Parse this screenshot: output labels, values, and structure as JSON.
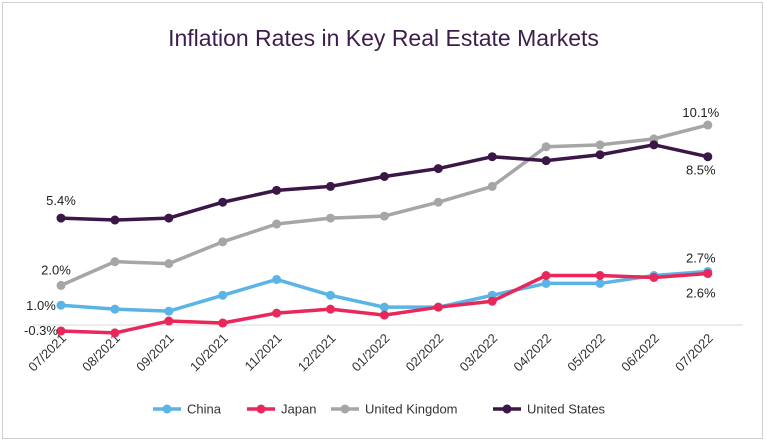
{
  "chart_data": {
    "type": "line",
    "title": "Inflation Rates in Key Real Estate Markets",
    "categories": [
      "07/2021",
      "08/2021",
      "09/2021",
      "10/2021",
      "11/2021",
      "12/2021",
      "01/2022",
      "02/2022",
      "03/2022",
      "04/2022",
      "05/2022",
      "06/2022",
      "07/2022"
    ],
    "series": [
      {
        "name": "China",
        "color": "#5ab4e5",
        "values": [
          1.0,
          0.8,
          0.7,
          1.5,
          2.3,
          1.5,
          0.9,
          0.9,
          1.5,
          2.1,
          2.1,
          2.5,
          2.7
        ]
      },
      {
        "name": "Japan",
        "color": "#e8285a",
        "values": [
          -0.3,
          -0.4,
          0.2,
          0.1,
          0.6,
          0.8,
          0.5,
          0.9,
          1.2,
          2.5,
          2.5,
          2.4,
          2.6
        ]
      },
      {
        "name": "United Kingdom",
        "color": "#a6a6a6",
        "values": [
          2.0,
          3.2,
          3.1,
          4.2,
          5.1,
          5.4,
          5.5,
          6.2,
          7.0,
          9.0,
          9.1,
          9.4,
          10.1
        ]
      },
      {
        "name": "United States",
        "color": "#3a1747",
        "values": [
          5.4,
          5.3,
          5.4,
          6.2,
          6.8,
          7.0,
          7.5,
          7.9,
          8.5,
          8.3,
          8.6,
          9.1,
          8.5
        ]
      }
    ],
    "data_labels": [
      {
        "series": "United States",
        "index": 0,
        "text": "5.4%"
      },
      {
        "series": "United Kingdom",
        "index": 0,
        "text": "2.0%"
      },
      {
        "series": "China",
        "index": 0,
        "text": "1.0%"
      },
      {
        "series": "Japan",
        "index": 0,
        "text": "-0.3%"
      },
      {
        "series": "United Kingdom",
        "index": 12,
        "text": "10.1%"
      },
      {
        "series": "United States",
        "index": 12,
        "text": "8.5%"
      },
      {
        "series": "China",
        "index": 12,
        "text": "2.7%"
      },
      {
        "series": "Japan",
        "index": 12,
        "text": "2.6%"
      }
    ],
    "ylim": [
      -0.3,
      10.5
    ],
    "grid": false,
    "legend_position": "bottom"
  }
}
